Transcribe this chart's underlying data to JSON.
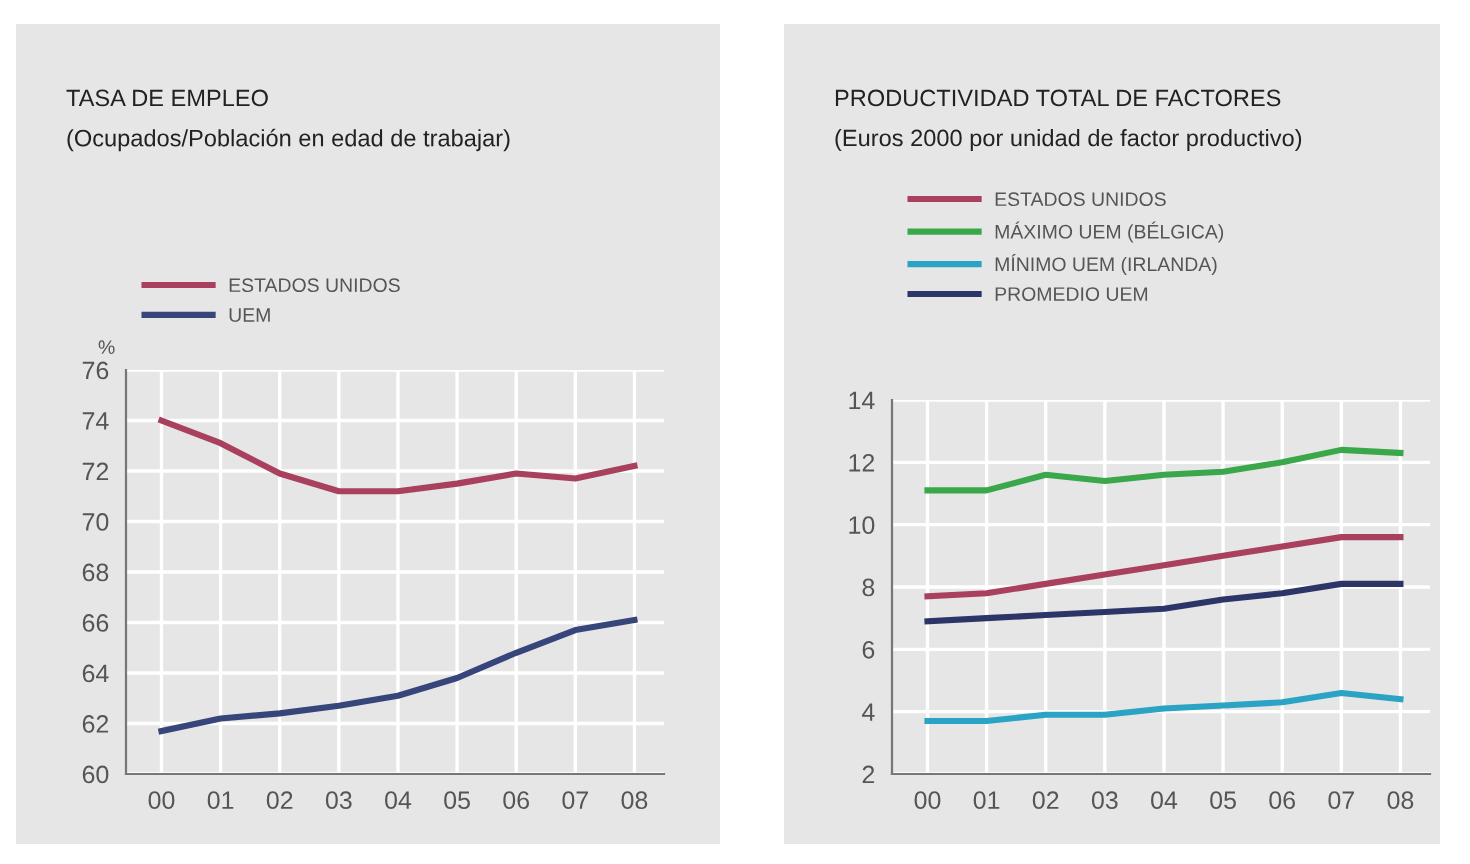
{
  "chart_data": [
    {
      "type": "line",
      "title": "TASA DE EMPLEO",
      "subtitle": "(Ocupados/Población en edad de trabajar)",
      "ylabel": "%",
      "categories": [
        "00",
        "01",
        "02",
        "03",
        "04",
        "05",
        "06",
        "07",
        "08"
      ],
      "series": [
        {
          "name": "ESTADOS UNIDOS",
          "color": "#a8405e",
          "values": [
            74.0,
            73.1,
            71.9,
            71.2,
            71.2,
            71.5,
            71.9,
            71.7,
            72.2
          ]
        },
        {
          "name": "UEM",
          "color": "#36457a",
          "values": [
            61.7,
            62.2,
            62.4,
            62.7,
            63.1,
            63.8,
            64.8,
            65.7,
            66.1
          ]
        }
      ],
      "ylim": [
        60,
        76
      ],
      "yticks": [
        60,
        62,
        64,
        66,
        68,
        70,
        72,
        74,
        76
      ],
      "grid": true,
      "legend": "top left",
      "marker": "none"
    },
    {
      "type": "line",
      "title": "PRODUCTIVIDAD TOTAL DE FACTORES",
      "subtitle": "(Euros 2000 por unidad de factor productivo)",
      "categories": [
        "00",
        "01",
        "02",
        "03",
        "04",
        "05",
        "06",
        "07",
        "08"
      ],
      "series": [
        {
          "name": "ESTADOS UNIDOS",
          "color": "#a8405e",
          "values": [
            7.7,
            7.8,
            8.1,
            8.4,
            8.7,
            9.0,
            9.3,
            9.6,
            9.6
          ]
        },
        {
          "name": "MÁXIMO UEM (BÉLGICA)",
          "color": "#3aa84a",
          "values": [
            11.1,
            11.1,
            11.6,
            11.4,
            11.6,
            11.7,
            12.0,
            12.4,
            12.3
          ]
        },
        {
          "name": "MÍNIMO UEM (IRLANDA)",
          "color": "#2aa3c4",
          "values": [
            3.7,
            3.7,
            3.9,
            3.9,
            4.1,
            4.2,
            4.3,
            4.6,
            4.4
          ]
        },
        {
          "name": "PROMEDIO UEM",
          "color": "#2c3568",
          "values": [
            6.9,
            7.0,
            7.1,
            7.2,
            7.3,
            7.6,
            7.8,
            8.1,
            8.1
          ]
        }
      ],
      "ylim": [
        2,
        14
      ],
      "yticks": [
        2,
        4,
        6,
        8,
        10,
        12,
        14
      ],
      "grid": true,
      "legend": "top left",
      "marker": "none"
    }
  ]
}
